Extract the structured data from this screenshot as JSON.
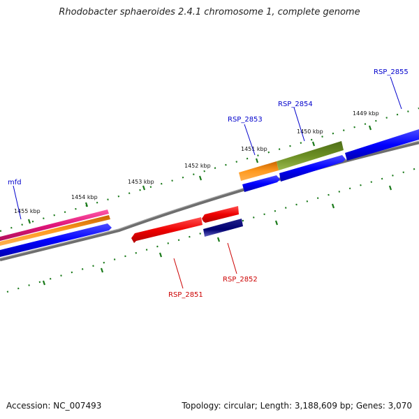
{
  "title": "Rhodobacter sphaeroides 2.4.1 chromosome 1, complete genome",
  "accession_text": "Accession: NC_007493",
  "stats_text": "Topology: circular; Length: 3,188,609 bp; Genes: 3,070",
  "ticks": [
    "1455 kbp",
    "1454 kbp",
    "1453 kbp",
    "1452 kbp",
    "1451 kbp",
    "1450 kbp",
    "1449 kbp"
  ],
  "genes": [
    {
      "name": "mfd",
      "color": "#0000cc"
    },
    {
      "name": "RSP_2853",
      "color": "#0000cc"
    },
    {
      "name": "RSP_2854",
      "color": "#0000cc"
    },
    {
      "name": "RSP_2855",
      "color": "#0000cc"
    },
    {
      "name": "RSP_2851",
      "color": "#cc0000"
    },
    {
      "name": "RSP_2852",
      "color": "#cc0000"
    }
  ],
  "colors": {
    "backbone": "#808080",
    "forward_cds": "#0000ff",
    "reverse_cds": "#ff0000",
    "reverse_dark": "#000080",
    "orange": "#ff8c00",
    "magenta": "#e0157a",
    "olive": "#6b8e23",
    "tick": "#1a7a1a"
  }
}
